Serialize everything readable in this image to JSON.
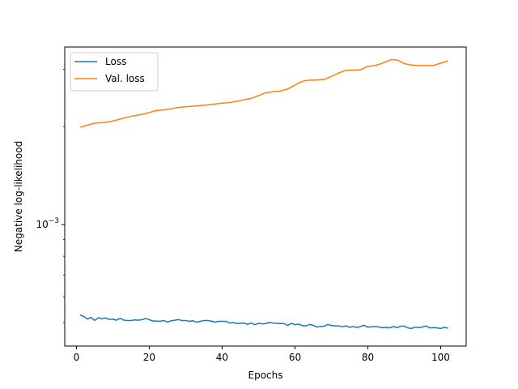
{
  "chart_data": {
    "type": "line",
    "title": "",
    "xlabel": "Epochs",
    "ylabel": "Negative log-likelihood",
    "yscale": "log",
    "xlim": [
      -3.2,
      107
    ],
    "ylim": [
      0.000424,
      0.00351
    ],
    "x_ticks": [
      0,
      20,
      40,
      60,
      80,
      100
    ],
    "x_tick_labels": [
      "0",
      "20",
      "40",
      "60",
      "80",
      "100"
    ],
    "y_ticks": [
      0.001
    ],
    "y_tick_labels": [
      {
        "base": "10",
        "exp": "−3"
      }
    ],
    "grid": false,
    "legend_position": "upper left",
    "series": [
      {
        "name": "Loss",
        "color": "#1f77b4",
        "x": [
          1,
          2,
          3,
          4,
          5,
          6,
          7,
          8,
          9,
          10,
          11,
          12,
          13,
          14,
          15,
          16,
          17,
          18,
          19,
          20,
          21,
          22,
          23,
          24,
          25,
          26,
          27,
          28,
          29,
          30,
          31,
          32,
          33,
          34,
          35,
          36,
          37,
          38,
          39,
          40,
          41,
          42,
          43,
          44,
          45,
          46,
          47,
          48,
          49,
          50,
          51,
          52,
          53,
          54,
          55,
          56,
          57,
          58,
          59,
          60,
          61,
          62,
          63,
          64,
          65,
          66,
          67,
          68,
          69,
          70,
          71,
          72,
          73,
          74,
          75,
          76,
          77,
          78,
          79,
          80,
          81,
          82,
          83,
          84,
          85,
          86,
          87,
          88,
          89,
          90,
          91,
          92,
          93,
          94,
          95,
          96,
          97,
          98,
          99,
          100,
          101,
          102
        ],
        "y": [
          0.000528,
          0.000523,
          0.000513,
          0.000519,
          0.000508,
          0.000518,
          0.000514,
          0.000517,
          0.000512,
          0.000513,
          0.000509,
          0.000516,
          0.000509,
          0.000508,
          0.000508,
          0.00051,
          0.000509,
          0.000511,
          0.000515,
          0.000511,
          0.000506,
          0.000506,
          0.000505,
          0.000508,
          0.000502,
          0.000507,
          0.000509,
          0.000511,
          0.000508,
          0.000508,
          0.000505,
          0.000507,
          0.000502,
          0.000505,
          0.000508,
          0.000508,
          0.000506,
          0.000502,
          0.000505,
          0.000505,
          0.000505,
          0.000499,
          0.000501,
          0.000497,
          0.000498,
          0.000499,
          0.000494,
          0.000499,
          0.000493,
          0.000498,
          0.000496,
          0.000497,
          0.000501,
          0.000499,
          0.000498,
          0.000497,
          0.000497,
          0.00049,
          0.000498,
          0.000493,
          0.000495,
          0.00049,
          0.000489,
          0.000494,
          0.000491,
          0.000485,
          0.000487,
          0.000488,
          0.000494,
          0.00049,
          0.000489,
          0.000489,
          0.000486,
          0.000489,
          0.000484,
          0.000487,
          0.000483,
          0.000487,
          0.000491,
          0.000484,
          0.000486,
          0.000487,
          0.000485,
          0.000483,
          0.000484,
          0.000482,
          0.000487,
          0.000483,
          0.000488,
          0.000488,
          0.000482,
          0.00048,
          0.000485,
          0.000483,
          0.000485,
          0.000489,
          0.000482,
          0.000483,
          0.000482,
          0.00048,
          0.000484,
          0.000481
        ]
      },
      {
        "name": "Val. loss",
        "color": "#ff7f0e",
        "x": [
          1,
          5,
          8,
          10,
          12,
          15,
          18,
          20,
          22,
          24,
          26,
          28,
          30,
          32,
          34,
          36,
          38,
          40,
          42,
          44,
          46,
          48,
          50,
          52,
          54,
          56,
          58,
          60,
          61,
          62,
          63,
          64,
          65,
          66,
          67,
          68,
          70,
          72,
          74,
          76,
          78,
          80,
          82,
          84,
          86,
          87,
          88,
          89,
          90,
          92,
          94,
          96,
          98,
          100,
          102
        ],
        "y": [
          0.00199,
          0.00205,
          0.00206,
          0.00208,
          0.00211,
          0.00215,
          0.00218,
          0.00221,
          0.00224,
          0.00225,
          0.00227,
          0.00229,
          0.0023,
          0.00231,
          0.00232,
          0.00233,
          0.002345,
          0.00236,
          0.00237,
          0.00239,
          0.00242,
          0.00244,
          0.00249,
          0.00254,
          0.00256,
          0.00257,
          0.00261,
          0.00268,
          0.00272,
          0.00275,
          0.00277,
          0.002775,
          0.00278,
          0.00278,
          0.00279,
          0.00279,
          0.00285,
          0.00292,
          0.00298,
          0.00298,
          0.00299,
          0.00306,
          0.00308,
          0.00313,
          0.0032,
          0.00321,
          0.0032,
          0.00317,
          0.00312,
          0.00309,
          0.00308,
          0.00308,
          0.00308,
          0.00313,
          0.00318
        ]
      }
    ]
  }
}
